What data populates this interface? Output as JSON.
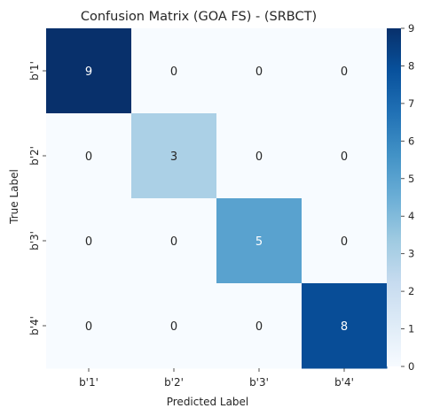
{
  "chart_data": {
    "type": "heatmap",
    "title": "Confusion Matrix (GOA FS) - (SRBCT)",
    "xlabel": "Predicted Label",
    "ylabel": "True Label",
    "x_categories": [
      "b'1'",
      "b'2'",
      "b'3'",
      "b'4'"
    ],
    "y_categories": [
      "b'1'",
      "b'2'",
      "b'3'",
      "b'4'"
    ],
    "values": [
      [
        9,
        0,
        0,
        0
      ],
      [
        0,
        3,
        0,
        0
      ],
      [
        0,
        0,
        5,
        0
      ],
      [
        0,
        0,
        0,
        8
      ]
    ],
    "colorbar": {
      "min": 0,
      "max": 9,
      "ticks": [
        "0",
        "1",
        "2",
        "3",
        "4",
        "5",
        "6",
        "7",
        "8",
        "9"
      ],
      "colormap": "Blues"
    },
    "colors": {
      "low": "#f7fbff",
      "high": "#08306b"
    },
    "annotations": true
  }
}
